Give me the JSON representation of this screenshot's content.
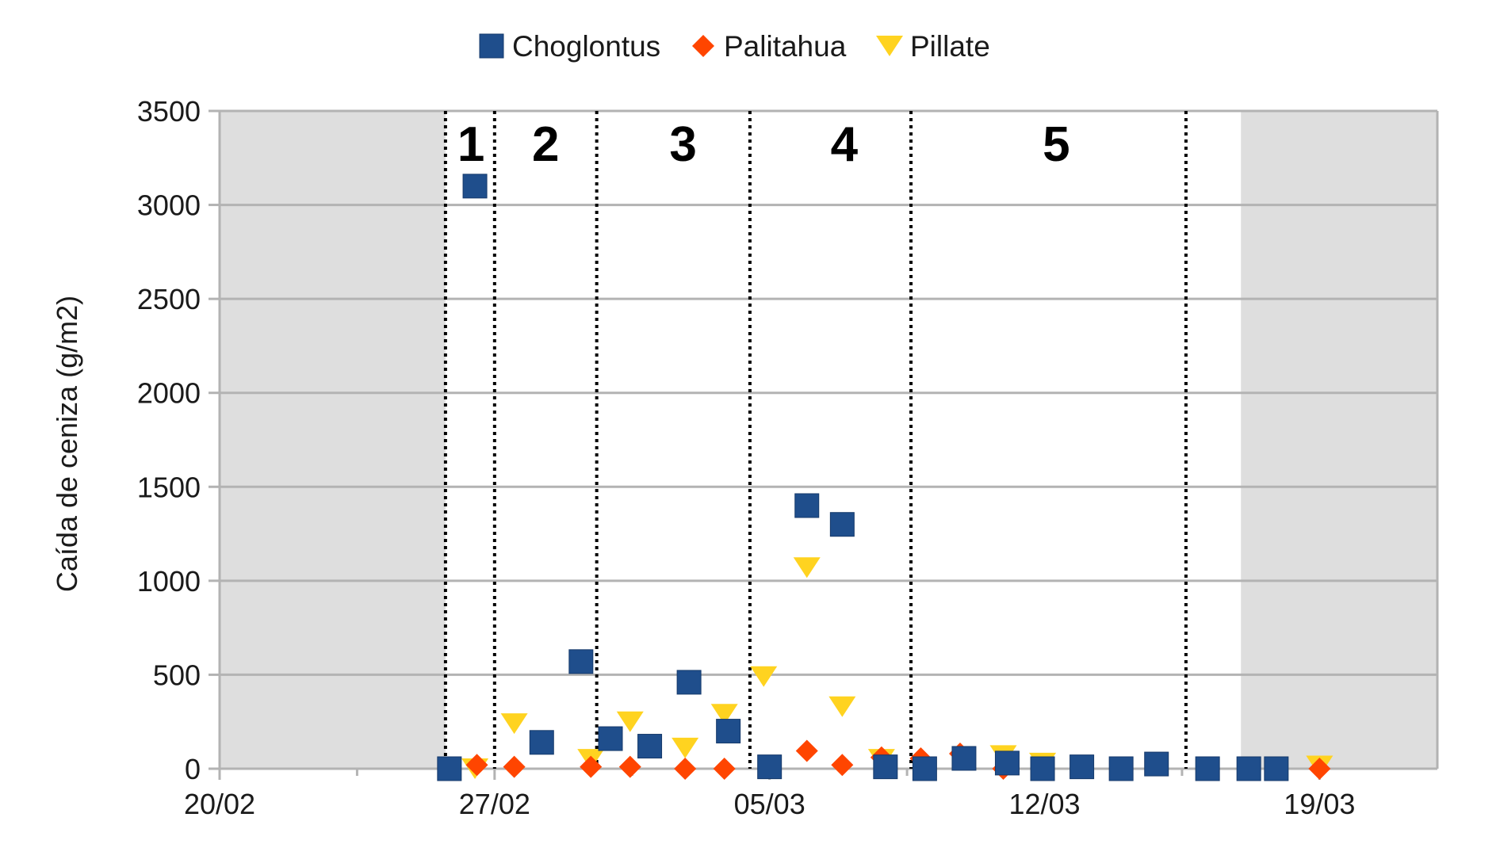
{
  "chart_data": {
    "type": "scatter",
    "xlabel": "",
    "ylabel": "Caída de ceniza (g/m2)",
    "ylim": [
      0,
      3500
    ],
    "yticks": [
      0,
      500,
      1000,
      1500,
      2000,
      2500,
      3000,
      3500
    ],
    "x_domain_days": [
      0,
      31
    ],
    "xticks": [
      {
        "day": 0,
        "label": "20/02"
      },
      {
        "day": 7,
        "label": "27/02"
      },
      {
        "day": 14,
        "label": "05/03"
      },
      {
        "day": 21,
        "label": "12/03"
      },
      {
        "day": 28,
        "label": "19/03"
      }
    ],
    "minor_x_ticks_days": [
      3.5,
      10.5,
      17.5,
      24.5
    ],
    "grid": "horizontal",
    "legend_position": "top",
    "shaded_regions_days": [
      [
        0,
        5.75
      ],
      [
        26,
        31
      ]
    ],
    "period_dividers_days": [
      5.75,
      7.0,
      9.6,
      13.5,
      17.6,
      24.6
    ],
    "periods": [
      {
        "label": "1",
        "day": 6.4
      },
      {
        "label": "2",
        "day": 8.3
      },
      {
        "label": "3",
        "day": 11.8
      },
      {
        "label": "4",
        "day": 15.9
      },
      {
        "label": "5",
        "day": 21.3
      }
    ],
    "series": [
      {
        "name": "Choglontus",
        "marker": "square",
        "color": "#1f4e8c",
        "points": [
          [
            5.85,
            0
          ],
          [
            6.5,
            3100
          ],
          [
            8.2,
            140
          ],
          [
            9.2,
            570
          ],
          [
            9.95,
            160
          ],
          [
            10.95,
            120
          ],
          [
            11.95,
            460
          ],
          [
            12.95,
            200
          ],
          [
            14.0,
            10
          ],
          [
            14.95,
            1400
          ],
          [
            15.85,
            1300
          ],
          [
            16.95,
            10
          ],
          [
            17.95,
            0
          ],
          [
            18.95,
            55
          ],
          [
            20.05,
            30
          ],
          [
            20.95,
            0
          ],
          [
            21.95,
            10
          ],
          [
            22.95,
            0
          ],
          [
            23.85,
            25
          ],
          [
            25.15,
            0
          ],
          [
            26.2,
            0
          ],
          [
            26.9,
            0
          ]
        ]
      },
      {
        "name": "Palitahua",
        "marker": "diamond",
        "color": "#ff4500",
        "points": [
          [
            6.55,
            20
          ],
          [
            7.5,
            10
          ],
          [
            9.45,
            10
          ],
          [
            10.45,
            10
          ],
          [
            11.85,
            0
          ],
          [
            12.85,
            0
          ],
          [
            14.95,
            95
          ],
          [
            15.85,
            20
          ],
          [
            16.85,
            60
          ],
          [
            17.85,
            55
          ],
          [
            18.85,
            80
          ],
          [
            19.95,
            0
          ],
          [
            28.0,
            0
          ]
        ]
      },
      {
        "name": "Pillate",
        "marker": "triangle-down",
        "color": "#ffd320",
        "points": [
          [
            6.5,
            0
          ],
          [
            7.5,
            240
          ],
          [
            9.45,
            50
          ],
          [
            10.45,
            250
          ],
          [
            11.85,
            110
          ],
          [
            12.85,
            290
          ],
          [
            13.85,
            490
          ],
          [
            14.95,
            1070
          ],
          [
            15.85,
            330
          ],
          [
            16.85,
            50
          ],
          [
            19.95,
            70
          ],
          [
            20.95,
            30
          ],
          [
            28.0,
            15
          ]
        ]
      }
    ]
  }
}
